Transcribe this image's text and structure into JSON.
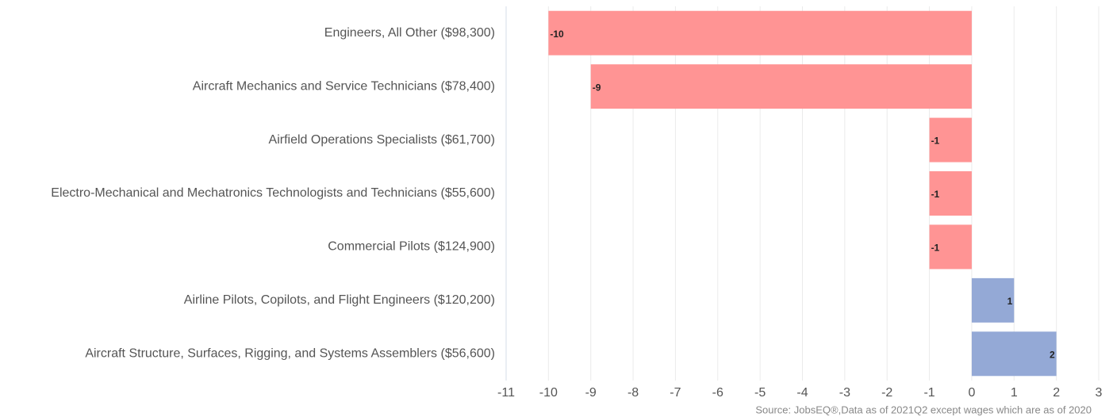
{
  "chart_data": {
    "type": "hbar",
    "categories": [
      "Engineers, All Other ($98,300)",
      "Aircraft Mechanics and Service Technicians ($78,400)",
      "Airfield Operations Specialists ($61,700)",
      "Electro-Mechanical and Mechatronics Technologists and Technicians ($55,600)",
      "Commercial Pilots ($124,900)",
      "Airline Pilots, Copilots, and Flight Engineers ($120,200)",
      "Aircraft Structure, Surfaces, Rigging, and Systems Assemblers ($56,600)"
    ],
    "values": [
      -10,
      -9,
      -1,
      -1,
      -1,
      1,
      2
    ],
    "colors": [
      "#ff9494",
      "#ff9494",
      "#ff9494",
      "#ff9494",
      "#ff9494",
      "#94a9d6",
      "#94a9d6"
    ],
    "xlim": [
      -11,
      3
    ],
    "xticks": [
      -11,
      -10,
      -9,
      -8,
      -7,
      -6,
      -5,
      -4,
      -3,
      -2,
      -1,
      0,
      1,
      2,
      3
    ],
    "grid": true,
    "source": "Source: JobsEQ®,Data as of 2021Q2 except wages which are as of 2020"
  }
}
